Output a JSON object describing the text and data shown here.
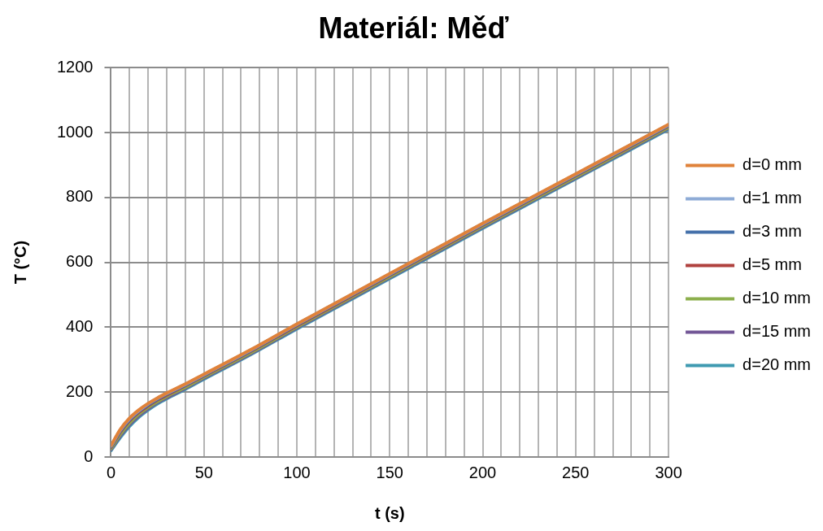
{
  "chart_data": {
    "type": "line",
    "title": "Materiál: Měď",
    "xlabel": "t (s)",
    "ylabel": "T (°C)",
    "x": [
      0,
      5,
      10,
      15,
      20,
      25,
      30,
      40,
      50,
      75,
      100,
      150,
      200,
      250,
      300
    ],
    "series": [
      {
        "name": "d=0 mm",
        "color": "#e0823a",
        "values": [
          35,
          85,
          120,
          145,
          165,
          182,
          197,
          225,
          255,
          330,
          410,
          565,
          720,
          872,
          1025
        ]
      },
      {
        "name": "d=1 mm",
        "color": "#8eabd6",
        "values": [
          34,
          83,
          118,
          143,
          164,
          181,
          196,
          224,
          254,
          329,
          409,
          564,
          719,
          871,
          1024
        ]
      },
      {
        "name": "d=3 mm",
        "color": "#4470aa",
        "values": [
          32,
          80,
          115,
          141,
          161,
          178,
          194,
          222,
          252,
          327,
          407,
          562,
          717,
          869,
          1022
        ]
      },
      {
        "name": "d=5 mm",
        "color": "#b0413e",
        "values": [
          30,
          77,
          112,
          138,
          158,
          176,
          191,
          220,
          250,
          325,
          405,
          560,
          715,
          867,
          1020
        ]
      },
      {
        "name": "d=10 mm",
        "color": "#8caf4c",
        "values": [
          26,
          70,
          105,
          132,
          153,
          171,
          187,
          215,
          246,
          321,
          401,
          556,
          711,
          863,
          1016
        ]
      },
      {
        "name": "d=15 mm",
        "color": "#725696",
        "values": [
          23,
          65,
          100,
          127,
          149,
          168,
          183,
          212,
          243,
          318,
          398,
          553,
          708,
          860,
          1013
        ]
      },
      {
        "name": "d=20 mm",
        "color": "#3f9ab1",
        "values": [
          20,
          60,
          95,
          123,
          145,
          164,
          180,
          209,
          240,
          315,
          395,
          550,
          705,
          857,
          1010
        ]
      }
    ],
    "xlim": [
      0,
      300
    ],
    "xticks": [
      0,
      {
        "value": 10,
        "label": null
      },
      {
        "value": 20,
        "label": null
      },
      {
        "value": 30,
        "label": null
      },
      {
        "value": 40,
        "label": null
      },
      50,
      {
        "value": 60,
        "label": null
      },
      {
        "value": 70,
        "label": null
      },
      {
        "value": 80,
        "label": null
      },
      {
        "value": 90,
        "label": null
      },
      100,
      {
        "value": 110,
        "label": null
      },
      {
        "value": 120,
        "label": null
      },
      {
        "value": 130,
        "label": null
      },
      {
        "value": 140,
        "label": null
      },
      150,
      {
        "value": 160,
        "label": null
      },
      {
        "value": 170,
        "label": null
      },
      {
        "value": 180,
        "label": null
      },
      {
        "value": 190,
        "label": null
      },
      200,
      {
        "value": 210,
        "label": null
      },
      {
        "value": 220,
        "label": null
      },
      {
        "value": 230,
        "label": null
      },
      {
        "value": 240,
        "label": null
      },
      250,
      {
        "value": 260,
        "label": null
      },
      {
        "value": 270,
        "label": null
      },
      {
        "value": 280,
        "label": null
      },
      {
        "value": 290,
        "label": null
      },
      300
    ],
    "ylim": [
      0,
      1200
    ],
    "yticks": [
      0,
      200,
      400,
      600,
      800,
      1000,
      1200
    ],
    "grid": true,
    "legend": "right",
    "marker": "none",
    "line_style": "solid"
  }
}
